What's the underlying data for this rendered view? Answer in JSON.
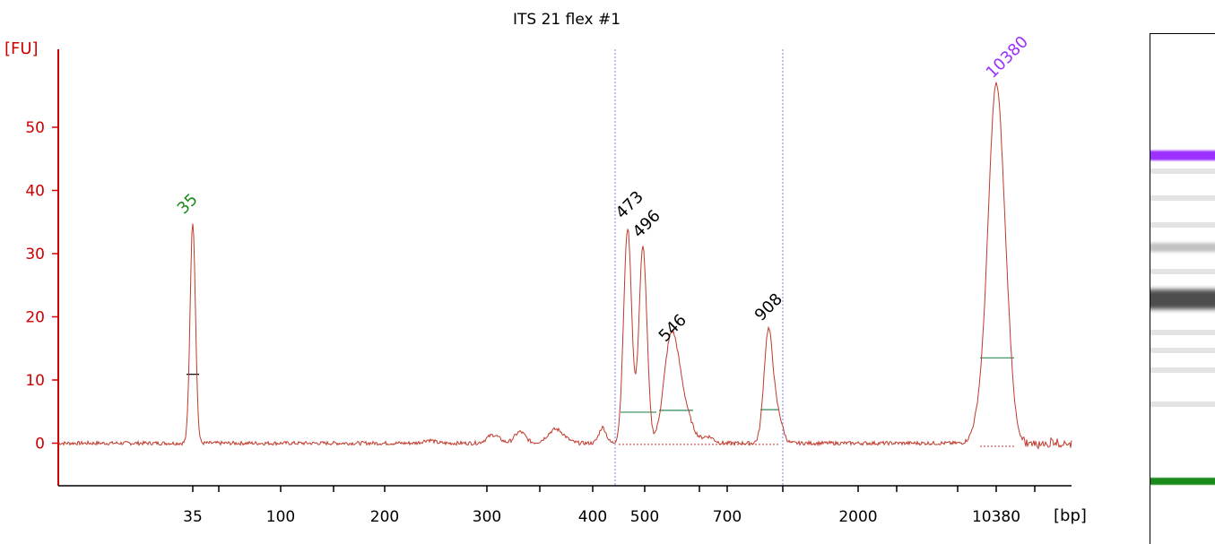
{
  "chart_data": {
    "type": "line",
    "title": "ITS 21 flex #1",
    "ylabel": "[FU]",
    "xlabel": "[bp]",
    "ylim": [
      -6.5,
      60
    ],
    "y_ticks": [
      0,
      10,
      20,
      30,
      40,
      50
    ],
    "x_tick_labels": [
      "35",
      "100",
      "200",
      "300",
      "400",
      "500",
      "700",
      "2000",
      "10380"
    ],
    "markers": {
      "lower": "35",
      "upper": "10380"
    },
    "peaks": [
      {
        "label": "35",
        "height": 35,
        "role": "lower marker",
        "color": "#1a8a1a"
      },
      {
        "label": "473",
        "height": 34,
        "color": "#000000"
      },
      {
        "label": "496",
        "height": 31,
        "color": "#000000"
      },
      {
        "label": "546",
        "height": 14.5,
        "color": "#000000"
      },
      {
        "label": "908",
        "height": 17.8,
        "color": "#000000"
      },
      {
        "label": "10380",
        "height": 56.5,
        "role": "upper marker",
        "color": "#9b30ff"
      }
    ],
    "region_boundaries": [
      "~455",
      "~800"
    ],
    "trace_color": "#c0392b",
    "axis_color": "#cc0000",
    "grid": false
  },
  "gel": {
    "bands": [
      {
        "position": "upper marker",
        "color": "#9b30ff",
        "intensity": 1.0
      },
      {
        "position": "473/496",
        "color": "#3a3a3a",
        "intensity": 0.9
      },
      {
        "position": "546",
        "color": "#888888",
        "intensity": 0.5
      },
      {
        "position": "lower marker",
        "color": "#1a8a1a",
        "intensity": 1.0
      }
    ]
  }
}
